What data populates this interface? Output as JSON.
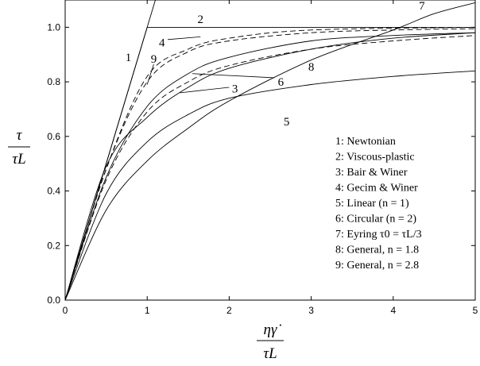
{
  "chart_data": {
    "type": "line",
    "title": "",
    "xlabel_num": "ηγ̇",
    "xlabel_den": "τL",
    "ylabel_num": "τ",
    "ylabel_den": "τL",
    "xlim": [
      0,
      5
    ],
    "ylim": [
      0,
      1.1
    ],
    "xticks": [
      "0",
      "1",
      "2",
      "3",
      "4",
      "5"
    ],
    "yticks": [
      "0.0",
      "0.2",
      "0.4",
      "0.6",
      "0.8",
      "1.0"
    ],
    "grid": false,
    "legend_position": "bottom-right",
    "legend": [
      "1: Newtonian",
      "2: Viscous-plastic",
      "3: Bair & Winer",
      "4: Gecim & Winer",
      "5: Linear (n = 1)",
      "6: Circular (n = 2)",
      "7: Eyring τ0 = τL/3",
      "8: General, n = 1.8",
      "9: General, n = 2.8"
    ],
    "series": [
      {
        "label": "1",
        "values": [
          [
            0,
            0
          ],
          [
            1.1,
            1.1
          ]
        ]
      },
      {
        "label": "2",
        "values": [
          [
            0,
            0
          ],
          [
            1,
            1
          ],
          [
            5,
            1
          ]
        ]
      },
      {
        "label": "3",
        "values": [
          [
            0,
            0
          ],
          [
            0.5,
            0.49
          ],
          [
            1,
            0.67
          ],
          [
            1.5,
            0.78
          ],
          [
            2,
            0.85
          ],
          [
            3,
            0.92
          ],
          [
            4,
            0.96
          ],
          [
            5,
            0.98
          ]
        ]
      },
      {
        "label": "4",
        "values": [
          [
            0,
            0
          ],
          [
            0.5,
            0.48
          ],
          [
            1,
            0.82
          ],
          [
            1.5,
            0.92
          ],
          [
            2,
            0.96
          ],
          [
            3,
            0.99
          ],
          [
            5,
            1.0
          ]
        ]
      },
      {
        "label": "5",
        "values": [
          [
            0,
            0
          ],
          [
            0.5,
            0.39
          ],
          [
            1,
            0.58
          ],
          [
            1.5,
            0.68
          ],
          [
            2,
            0.74
          ],
          [
            3,
            0.79
          ],
          [
            4,
            0.82
          ],
          [
            5,
            0.84
          ]
        ]
      },
      {
        "label": "6",
        "values": [
          [
            0,
            0
          ],
          [
            0.5,
            0.45
          ],
          [
            1,
            0.71
          ],
          [
            1.5,
            0.83
          ],
          [
            2,
            0.89
          ],
          [
            3,
            0.95
          ],
          [
            4,
            0.97
          ],
          [
            5,
            0.98
          ]
        ]
      },
      {
        "label": "7",
        "values": [
          [
            0,
            0
          ],
          [
            0.5,
            0.33
          ],
          [
            1,
            0.51
          ],
          [
            1.5,
            0.63
          ],
          [
            2,
            0.73
          ],
          [
            3,
            0.88
          ],
          [
            4,
            0.99
          ],
          [
            4.5,
            1.05
          ],
          [
            5,
            1.09
          ]
        ]
      },
      {
        "label": "8",
        "values": [
          [
            0,
            0
          ],
          [
            0.5,
            0.44
          ],
          [
            1,
            0.69
          ],
          [
            1.5,
            0.8
          ],
          [
            2,
            0.86
          ],
          [
            3,
            0.92
          ],
          [
            4,
            0.95
          ],
          [
            5,
            0.97
          ]
        ]
      },
      {
        "label": "9",
        "values": [
          [
            0,
            0
          ],
          [
            0.5,
            0.48
          ],
          [
            1,
            0.8
          ],
          [
            1.5,
            0.91
          ],
          [
            2,
            0.95
          ],
          [
            3,
            0.98
          ],
          [
            4,
            0.99
          ],
          [
            5,
            0.995
          ]
        ]
      }
    ]
  }
}
